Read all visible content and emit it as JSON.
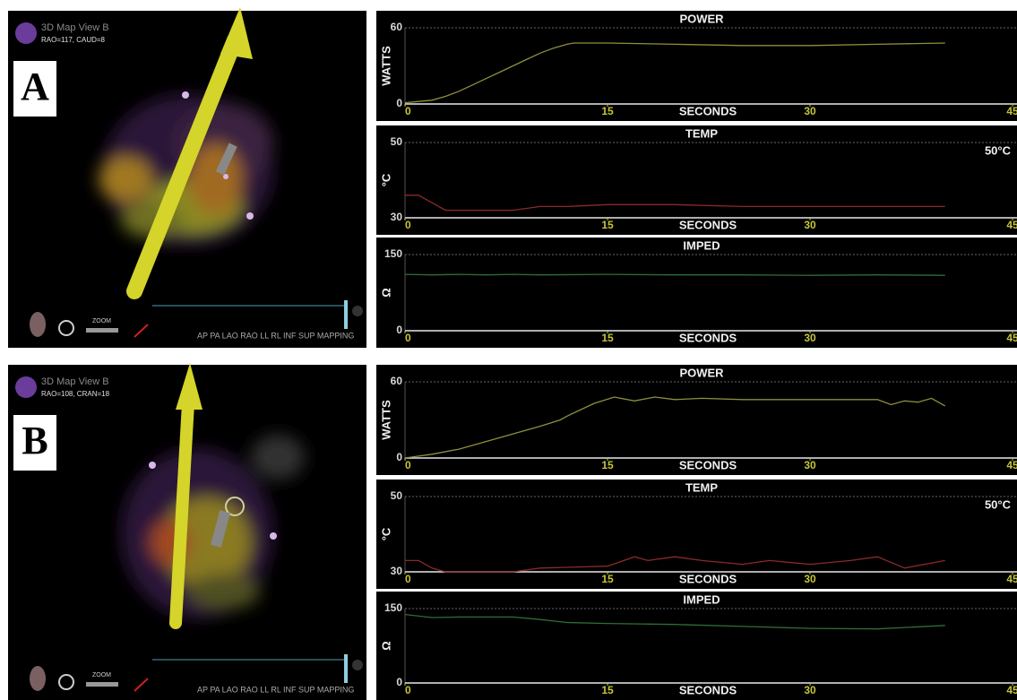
{
  "panels": [
    {
      "label": "A",
      "view_name": "3D Map View B",
      "view_angle": "RAO=117, CAUD=8",
      "zoom_label": "ZOOM",
      "view_buttons": "AP PA LAO RAO LL RL INF SUP MAPPING"
    },
    {
      "label": "B",
      "view_name": "3D Map View B",
      "view_angle": "RAO=108, CRAN=18",
      "zoom_label": "ZOOM",
      "view_buttons": "AP PA LAO RAO LL RL INF SUP MAPPING"
    }
  ],
  "chart_data": [
    {
      "type": "line",
      "title": "POWER",
      "y_label": "WATTS",
      "x_label": "SECONDS",
      "xlim": [
        0,
        45
      ],
      "xticks": [
        0,
        15,
        30,
        45
      ],
      "ylim": [
        0,
        60
      ],
      "yticks": [
        0,
        60
      ],
      "series": [
        {
          "color": "#8f8f3c",
          "x": [
            0,
            1,
            2,
            3,
            4,
            5,
            6,
            7,
            8,
            9,
            10,
            11,
            12,
            12.5,
            15,
            20,
            25,
            30,
            35,
            40
          ],
          "values": [
            1,
            2,
            3,
            6,
            10,
            15,
            20,
            25,
            30,
            35,
            40,
            44,
            47,
            48,
            48,
            47,
            46,
            46,
            47,
            48
          ]
        }
      ]
    },
    {
      "type": "line",
      "title": "TEMP",
      "y_label": "°C",
      "x_label": "SECONDS",
      "annotation": "50°C",
      "xlim": [
        0,
        45
      ],
      "xticks": [
        0,
        15,
        30,
        45
      ],
      "ylim": [
        30,
        50
      ],
      "yticks": [
        30,
        50
      ],
      "series": [
        {
          "color": "#8b2a2a",
          "x": [
            0,
            1,
            2,
            3,
            5,
            8,
            10,
            12,
            15,
            20,
            25,
            30,
            35,
            40
          ],
          "values": [
            36,
            36,
            34,
            32,
            32,
            32,
            33,
            33,
            33.5,
            33.5,
            33,
            33,
            33,
            33
          ]
        }
      ]
    },
    {
      "type": "line",
      "title": "IMPED",
      "y_label": "Ω",
      "x_label": "SECONDS",
      "xlim": [
        0,
        45
      ],
      "xticks": [
        0,
        15,
        30,
        45
      ],
      "ylim": [
        0,
        150
      ],
      "yticks": [
        0,
        150
      ],
      "series": [
        {
          "color": "#2e6e35",
          "x": [
            0,
            2,
            4,
            6,
            8,
            10,
            15,
            20,
            25,
            30,
            35,
            40
          ],
          "values": [
            111,
            110,
            111,
            110,
            111,
            110,
            111,
            110,
            110,
            109,
            110,
            109
          ]
        }
      ]
    },
    {
      "type": "line",
      "title": "POWER",
      "y_label": "WATTS",
      "x_label": "SECONDS",
      "xlim": [
        0,
        45
      ],
      "xticks": [
        0,
        15,
        30,
        45
      ],
      "ylim": [
        0,
        60
      ],
      "yticks": [
        0,
        60
      ],
      "series": [
        {
          "color": "#8f8f3c",
          "x": [
            0,
            2,
            4,
            6,
            8,
            10,
            11.5,
            12,
            14,
            15.5,
            17,
            18.5,
            20,
            22,
            25,
            30,
            35,
            36,
            37,
            38,
            39,
            40
          ],
          "values": [
            0,
            3,
            7,
            13,
            19,
            25,
            30,
            33,
            43,
            48,
            45,
            48,
            46,
            47,
            46,
            46,
            46,
            42,
            45,
            44,
            47,
            41
          ]
        }
      ]
    },
    {
      "type": "line",
      "title": "TEMP",
      "y_label": "°C",
      "x_label": "SECONDS",
      "annotation": "50°C",
      "xlim": [
        0,
        45
      ],
      "xticks": [
        0,
        15,
        30,
        45
      ],
      "ylim": [
        30,
        50
      ],
      "yticks": [
        30,
        50
      ],
      "series": [
        {
          "color": "#8b2a2a",
          "x": [
            0,
            1,
            2,
            3,
            5,
            8,
            10,
            15,
            17,
            18,
            20,
            22,
            25,
            27,
            30,
            33,
            35,
            37,
            40
          ],
          "values": [
            33,
            33,
            31,
            30,
            30,
            30,
            31,
            31.5,
            34,
            33,
            34,
            33,
            32,
            33,
            32,
            33,
            34,
            31,
            33
          ]
        }
      ]
    },
    {
      "type": "line",
      "title": "IMPED",
      "y_label": "Ω",
      "x_label": "SECONDS",
      "xlim": [
        0,
        45
      ],
      "xticks": [
        0,
        15,
        30,
        45
      ],
      "ylim": [
        0,
        150
      ],
      "yticks": [
        0,
        150
      ],
      "series": [
        {
          "color": "#2e6e35",
          "x": [
            0,
            2,
            4,
            6,
            8,
            10,
            12,
            15,
            20,
            25,
            30,
            35,
            40
          ],
          "values": [
            138,
            132,
            133,
            133,
            133,
            128,
            122,
            120,
            118,
            114,
            110,
            109,
            116
          ]
        }
      ]
    }
  ]
}
